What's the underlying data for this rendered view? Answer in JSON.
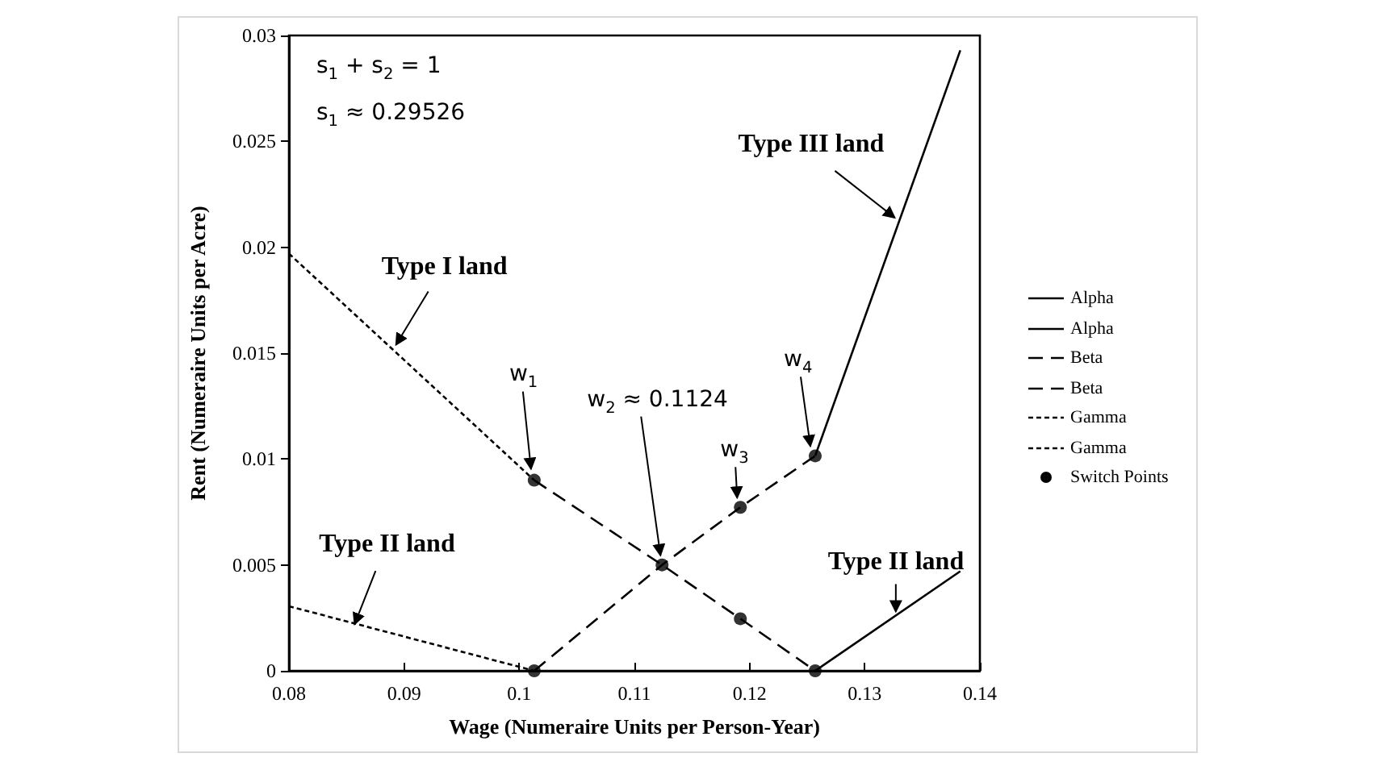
{
  "chart_data": {
    "type": "line",
    "xlabel": "Wage (Numeraire Units per Person-Year)",
    "ylabel": "Rent (Numeraire Units per Acre)",
    "xlim": [
      0.08,
      0.14
    ],
    "xticks": [
      0.08,
      0.09,
      0.1,
      0.11,
      0.12,
      0.13,
      0.14
    ],
    "ylim": [
      0,
      0.03
    ],
    "yticks": [
      0,
      0.005,
      0.01,
      0.015,
      0.02,
      0.025,
      0.03
    ],
    "grid": false,
    "legend": "right",
    "series": [
      {
        "name": "Alpha",
        "color": "#000000",
        "line_style": "solid",
        "x": [
          0.1257,
          0.1383
        ],
        "values": [
          0.01015,
          0.0293
        ]
      },
      {
        "name": "Alpha",
        "color": "#000000",
        "line_style": "solid",
        "x": [
          0.1257,
          0.1383
        ],
        "values": [
          0,
          0.0047
        ]
      },
      {
        "name": "Beta",
        "color": "#000000",
        "line_style": "dashed",
        "x": [
          0.1013,
          0.1124,
          0.1192,
          0.1257
        ],
        "values": [
          0.009,
          0.005,
          0.00246,
          0
        ]
      },
      {
        "name": "Beta",
        "color": "#000000",
        "line_style": "dashed",
        "x": [
          0.1013,
          0.1124,
          0.1192,
          0.1257
        ],
        "values": [
          0,
          0.005,
          0.00772,
          0.01015
        ]
      },
      {
        "name": "Gamma",
        "color": "#000000",
        "line_style": "dotted",
        "x": [
          0.08,
          0.1013
        ],
        "values": [
          0.0197,
          0.009
        ]
      },
      {
        "name": "Gamma",
        "color": "#000000",
        "line_style": "dotted",
        "x": [
          0.08,
          0.1013
        ],
        "values": [
          0.00305,
          0
        ]
      },
      {
        "name": "Switch Points",
        "type": "scatter",
        "marker": "circle",
        "color": "#000000",
        "x": [
          0.1013,
          0.1013,
          0.1124,
          0.1192,
          0.1192,
          0.1257,
          0.1257
        ],
        "values": [
          0.009,
          0,
          0.005,
          0.00772,
          0.00246,
          0.01015,
          0
        ]
      }
    ],
    "annotations": [
      "s$_{1}$ + s$_{2}$ = 1",
      "s$_{1}$ ≈ 0.29526",
      {
        "text": "Type I land",
        "x": 0.0893,
        "y": 0.0154
      },
      {
        "text": "Type III land",
        "x": 0.1326,
        "y": 0.0214
      },
      {
        "text": "Type II land",
        "x": 0.0857,
        "y": 0.0022
      },
      {
        "text": "Type II land",
        "x": 0.1327,
        "y": 0.0028
      },
      {
        "text": "w$_{1}$",
        "x": 0.1013,
        "y": 0.009
      },
      {
        "text": "w$_{2}$ ≈ 0.1124",
        "x": 0.1124,
        "y": 0.005
      },
      {
        "text": "w$_{3}$",
        "x": 0.1192,
        "y": 0.00772
      },
      {
        "text": "w$_{4}$",
        "x": 0.1257,
        "y": 0.01015
      }
    ]
  }
}
